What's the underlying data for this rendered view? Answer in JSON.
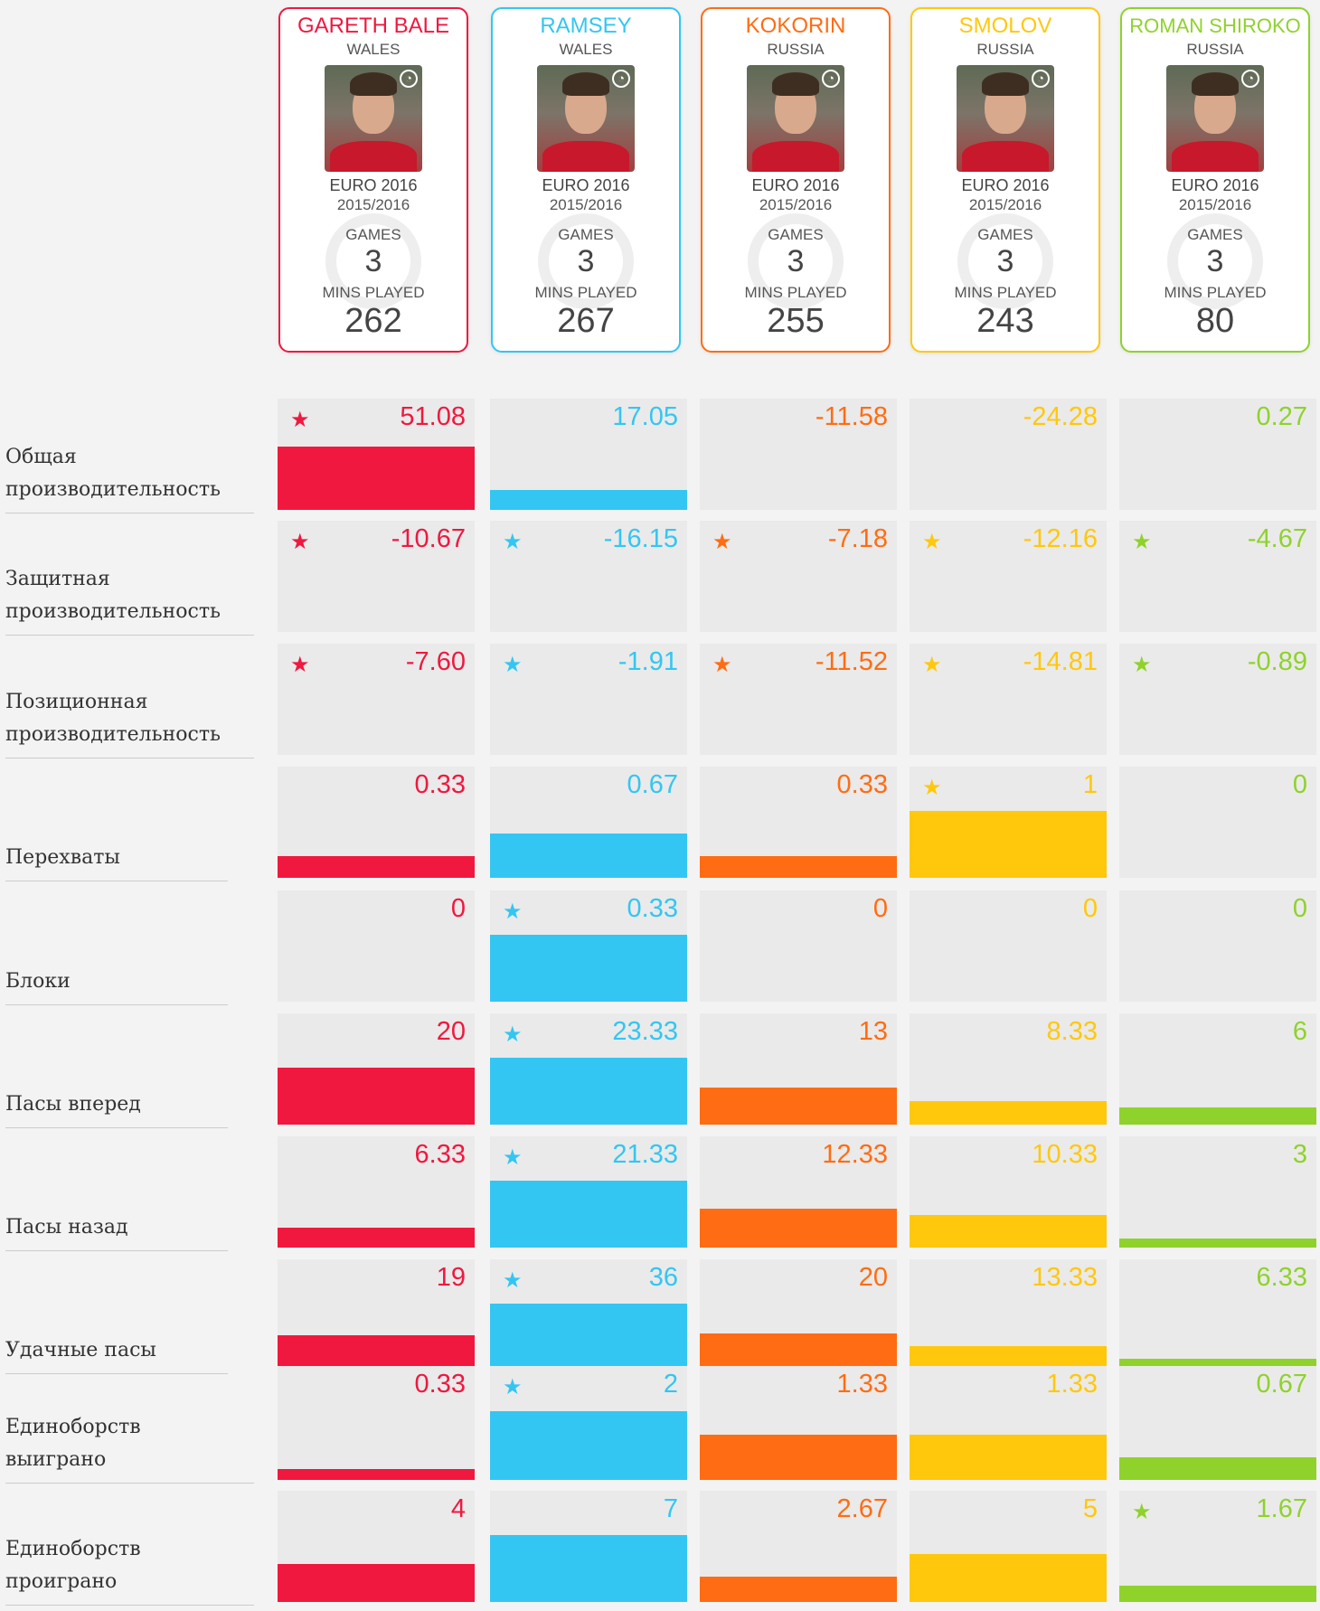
{
  "players": [
    {
      "name": "GARETH BALE",
      "country": "WALES",
      "competition": "EURO 2016",
      "season": "2015/2016",
      "games_label": "GAMES",
      "games": "3",
      "mins_label": "MINS PLAYED",
      "mins": "262",
      "color": "#f0183f",
      "icon": "player-photo-icon"
    },
    {
      "name": "RAMSEY",
      "country": "WALES",
      "competition": "EURO 2016",
      "season": "2015/2016",
      "games_label": "GAMES",
      "games": "3",
      "mins_label": "MINS PLAYED",
      "mins": "267",
      "color": "#33c6f2",
      "icon": "player-photo-icon"
    },
    {
      "name": "KOKORIN",
      "country": "RUSSIA",
      "competition": "EURO 2016",
      "season": "2015/2016",
      "games_label": "GAMES",
      "games": "3",
      "mins_label": "MINS PLAYED",
      "mins": "255",
      "color": "#ff6c13",
      "icon": "player-photo-icon"
    },
    {
      "name": "SMOLOV",
      "country": "RUSSIA",
      "competition": "EURO 2016",
      "season": "2015/2016",
      "games_label": "GAMES",
      "games": "3",
      "mins_label": "MINS PLAYED",
      "mins": "243",
      "color": "#ffc80c",
      "icon": "player-photo-icon"
    },
    {
      "name": "ROMAN SHIROKO",
      "country": "RUSSIA",
      "competition": "EURO 2016",
      "season": "2015/2016",
      "games_label": "GAMES",
      "games": "3",
      "mins_label": "MINS PLAYED",
      "mins": "80",
      "color": "#8fd22b",
      "icon": "player-photo-icon"
    }
  ],
  "star_icon": "star-icon",
  "chart_data": {
    "type": "bar",
    "title": "",
    "series_names": [
      "GARETH BALE",
      "RAMSEY",
      "KOKORIN",
      "SMOLOV",
      "ROMAN SHIROKO"
    ],
    "metrics": [
      {
        "label_lines": [
          "Общая",
          "производительность"
        ],
        "values": [
          "51.08",
          "17.05",
          "-11.58",
          "-24.28",
          "0.27"
        ],
        "bars": [
          0.6,
          0.19,
          0,
          0,
          0
        ],
        "stars": [
          true,
          false,
          false,
          false,
          false
        ]
      },
      {
        "label_lines": [
          "Защитная",
          "производительность"
        ],
        "values": [
          "-10.67",
          "-16.15",
          "-7.18",
          "-12.16",
          "-4.67"
        ],
        "bars": [
          0,
          0,
          0,
          0,
          0
        ],
        "stars": [
          true,
          true,
          true,
          true,
          true
        ]
      },
      {
        "label_lines": [
          "Позиционная",
          "производительность"
        ],
        "values": [
          "-7.60",
          "-1.91",
          "-11.52",
          "-14.81",
          "-0.89"
        ],
        "bars": [
          0,
          0,
          0,
          0,
          0
        ],
        "stars": [
          true,
          true,
          true,
          true,
          true
        ]
      },
      {
        "label_lines": [
          "Перехваты"
        ],
        "values": [
          "0.33",
          "0.67",
          "0.33",
          "1",
          "0"
        ],
        "bars": [
          0.33,
          0.67,
          0.33,
          1,
          0
        ],
        "stars": [
          false,
          false,
          false,
          true,
          false
        ]
      },
      {
        "label_lines": [
          "Блоки"
        ],
        "values": [
          "0",
          "0.33",
          "0",
          "0",
          "0"
        ],
        "bars": [
          0,
          1,
          0,
          0,
          0
        ],
        "stars": [
          false,
          true,
          false,
          false,
          false
        ]
      },
      {
        "label_lines": [
          "Пасы вперед"
        ],
        "values": [
          "20",
          "23.33",
          "13",
          "8.33",
          "6"
        ],
        "bars": [
          20,
          23.33,
          13,
          8.33,
          6
        ],
        "stars": [
          false,
          true,
          false,
          false,
          false
        ]
      },
      {
        "label_lines": [
          "Пасы назад"
        ],
        "values": [
          "6.33",
          "21.33",
          "12.33",
          "10.33",
          "3"
        ],
        "bars": [
          6.33,
          21.33,
          12.33,
          10.33,
          3
        ],
        "stars": [
          false,
          true,
          false,
          false,
          false
        ]
      },
      {
        "label_lines": [
          "Удачные пасы"
        ],
        "values": [
          "19",
          "36",
          "20",
          "13.33",
          "6.33"
        ],
        "bars": [
          19,
          36,
          20,
          13.33,
          6.33
        ],
        "stars": [
          false,
          true,
          false,
          false,
          false
        ]
      },
      {
        "label_lines": [
          "Единоборств",
          "выиграно"
        ],
        "values": [
          "0.33",
          "2",
          "1.33",
          "1.33",
          "0.67"
        ],
        "bars": [
          0.33,
          2,
          1.33,
          1.33,
          0.67
        ],
        "stars": [
          false,
          true,
          false,
          false,
          false
        ]
      },
      {
        "label_lines": [
          "Единоборств",
          "проиграно"
        ],
        "values": [
          "4",
          "7",
          "2.67",
          "5",
          "1.67"
        ],
        "bars": [
          4,
          7,
          2.67,
          5,
          1.67
        ],
        "stars": [
          false,
          false,
          false,
          false,
          true
        ]
      }
    ]
  }
}
